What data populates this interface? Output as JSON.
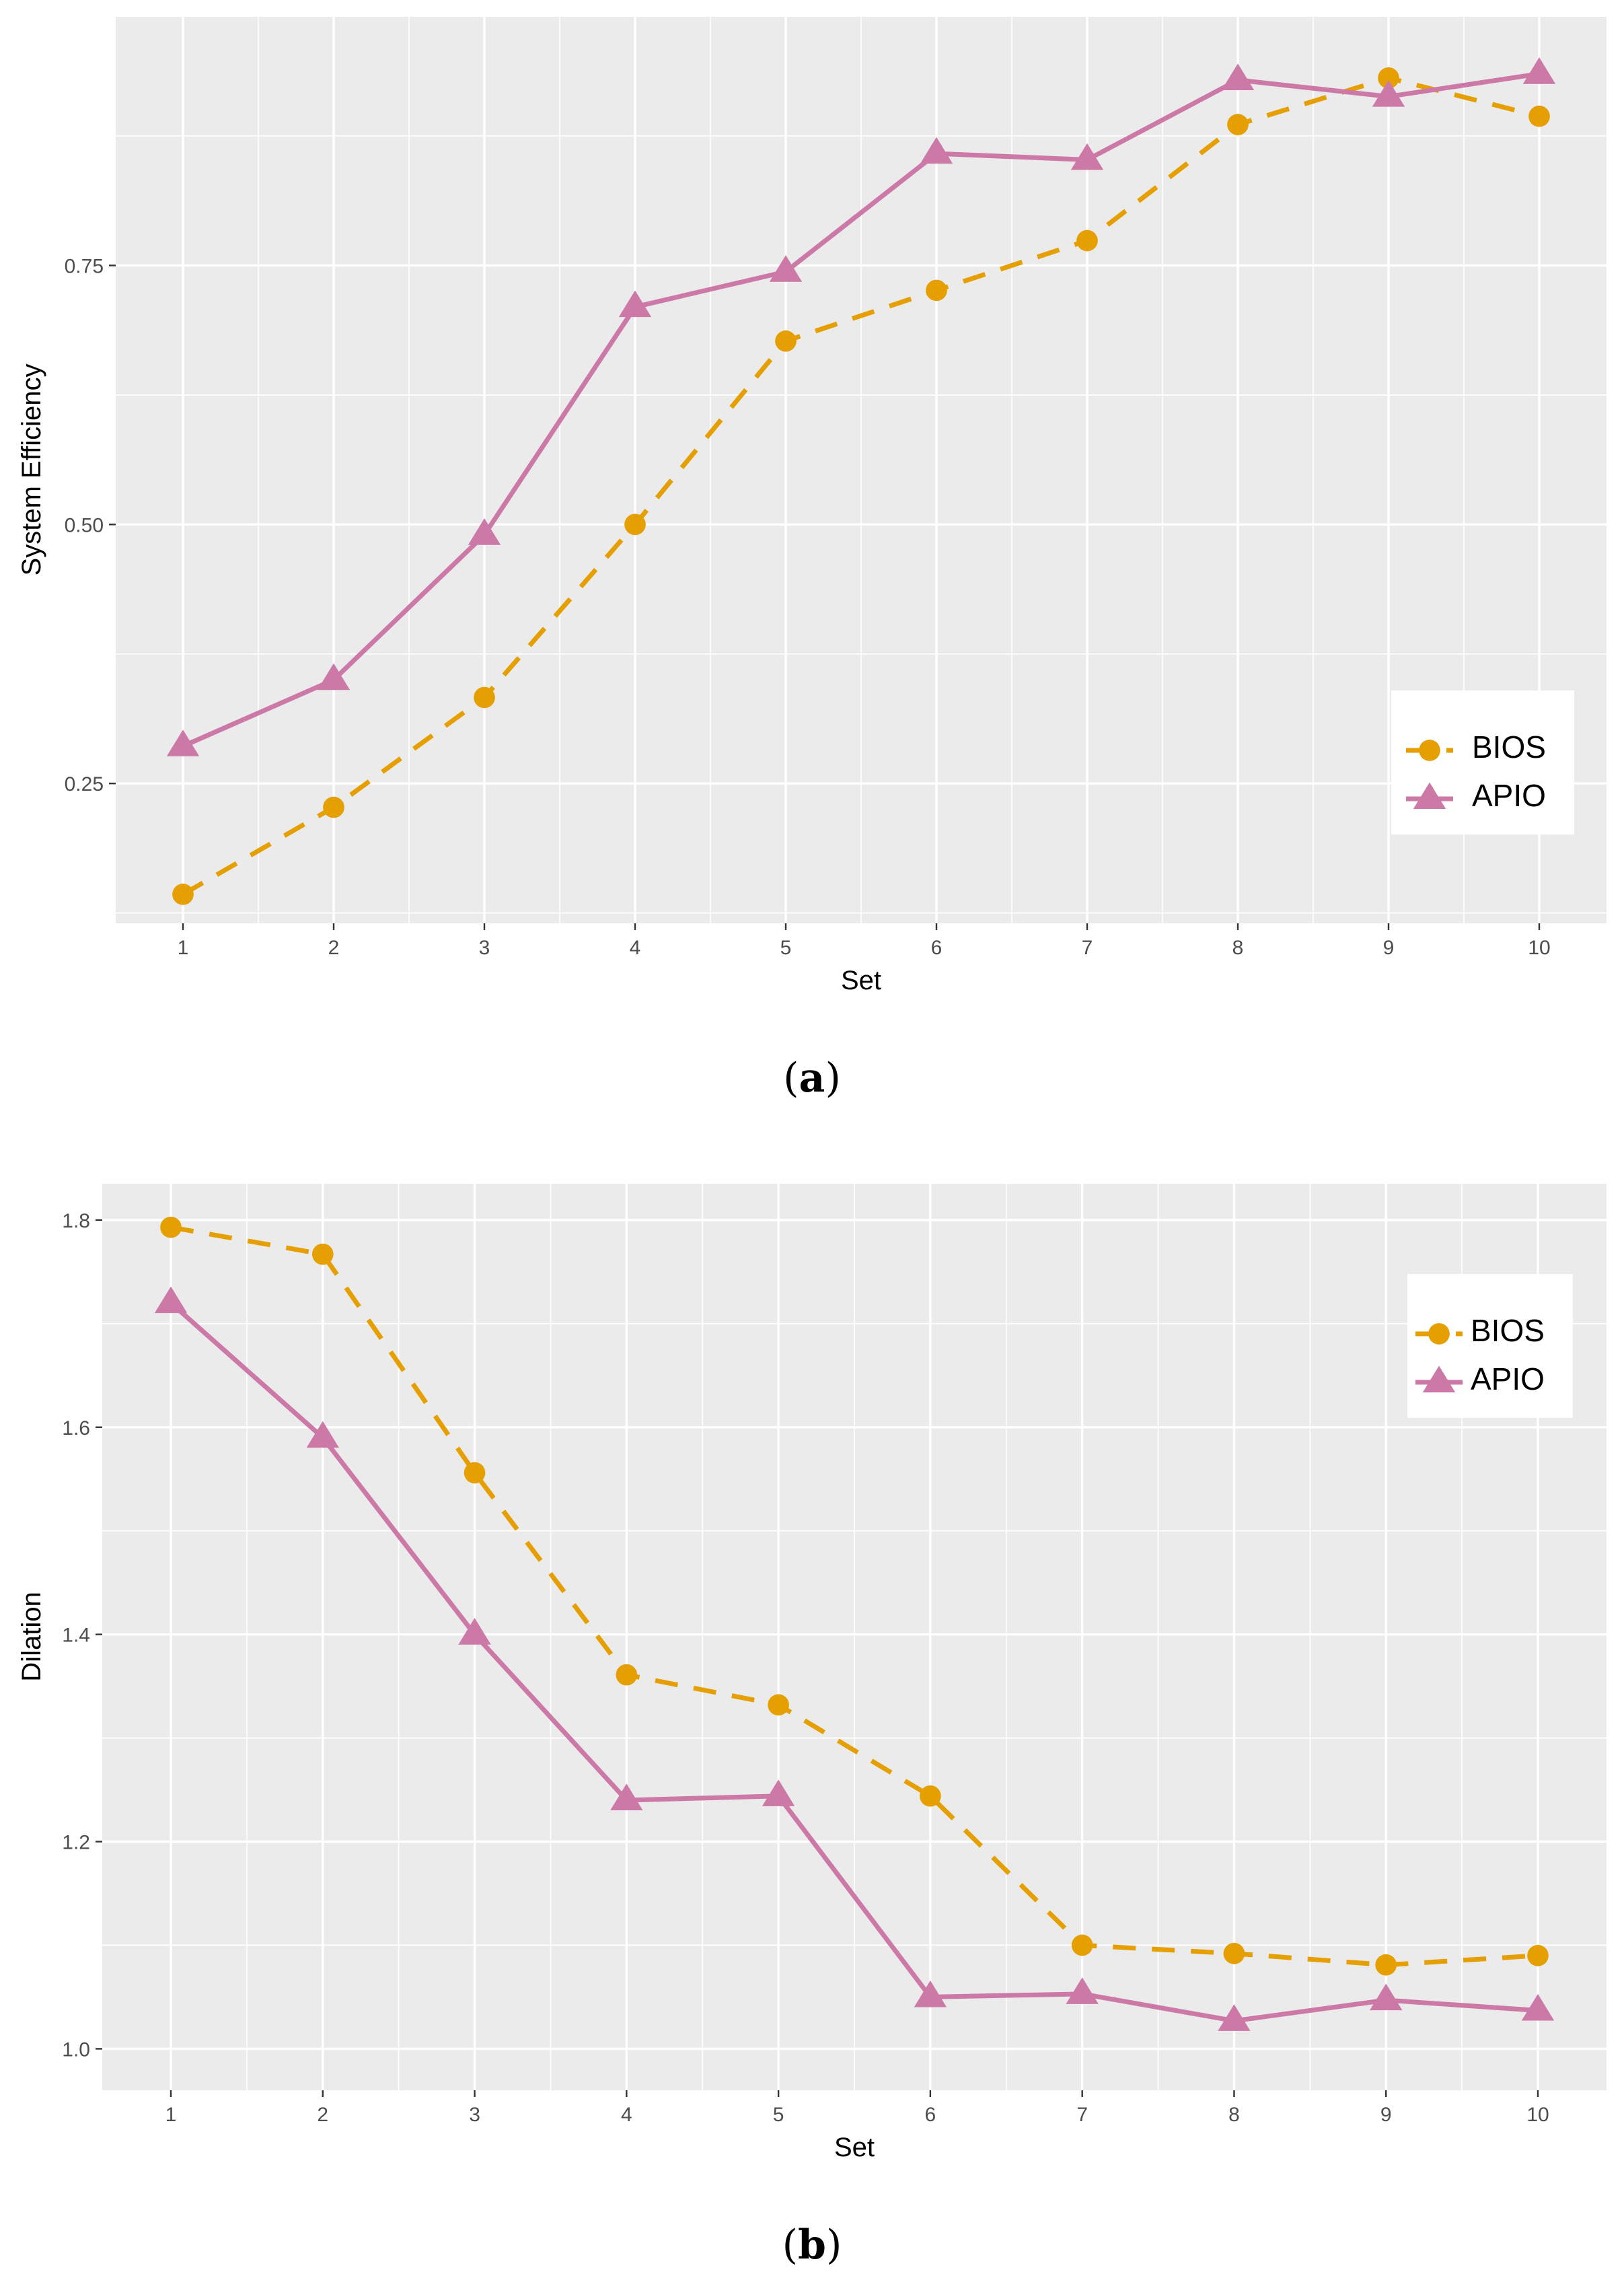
{
  "colors": {
    "bios": "#E69F00",
    "apio": "#CC79A7",
    "panel": "#EBEBEB",
    "grid": "#FFFFFF"
  },
  "captions": {
    "a": "a",
    "b": "b"
  },
  "chart_data": [
    {
      "type": "line",
      "panel_label": "a",
      "categories": [
        "1",
        "2",
        "3",
        "4",
        "5",
        "6",
        "7",
        "8",
        "9",
        "10"
      ],
      "xlabel": "Set",
      "ylabel": "System Efficiency",
      "yticks": [
        0.25,
        0.5,
        0.75
      ],
      "ytick_labels": [
        "0.25",
        "0.50",
        "0.75"
      ],
      "ylim": [
        0.115,
        0.99
      ],
      "grid": true,
      "legend_position": "right",
      "series": [
        {
          "name": "BIOS",
          "marker": "circle",
          "linestyle": "dashed",
          "values": [
            0.143,
            0.227,
            0.333,
            0.5,
            0.677,
            0.726,
            0.774,
            0.886,
            0.931,
            0.894
          ]
        },
        {
          "name": "APIO",
          "marker": "triangle",
          "linestyle": "solid",
          "values": [
            0.286,
            0.35,
            0.49,
            0.71,
            0.744,
            0.858,
            0.852,
            0.929,
            0.913,
            0.935
          ]
        }
      ]
    },
    {
      "type": "line",
      "panel_label": "b",
      "categories": [
        "1",
        "2",
        "3",
        "4",
        "5",
        "6",
        "7",
        "8",
        "9",
        "10"
      ],
      "xlabel": "Set",
      "ylabel": "Dilation",
      "yticks": [
        1.0,
        1.2,
        1.4,
        1.6,
        1.8
      ],
      "ytick_labels": [
        "1.0",
        "1.2",
        "1.4",
        "1.6",
        "1.8"
      ],
      "ylim": [
        0.96,
        1.835
      ],
      "grid": true,
      "legend_position": "top-right",
      "series": [
        {
          "name": "BIOS",
          "marker": "circle",
          "linestyle": "dashed",
          "values": [
            1.793,
            1.767,
            1.556,
            1.361,
            1.332,
            1.244,
            1.1,
            1.092,
            1.081,
            1.09
          ]
        },
        {
          "name": "APIO",
          "marker": "triangle",
          "linestyle": "solid",
          "values": [
            1.72,
            1.59,
            1.4,
            1.24,
            1.244,
            1.05,
            1.053,
            1.027,
            1.047,
            1.037
          ]
        }
      ]
    }
  ]
}
